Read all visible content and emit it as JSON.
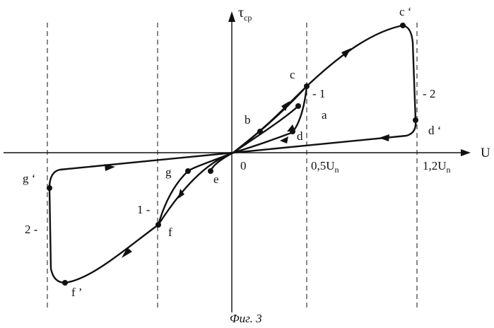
{
  "axes": {
    "y_label_main": "τ",
    "y_label_sub": "ср",
    "x_label": "U",
    "origin": "0",
    "tick_half_main": "0,5U",
    "tick_half_sub": "n",
    "tick_full_main": "1,2U",
    "tick_full_sub": "n"
  },
  "points": {
    "a": "a",
    "b": "b",
    "c": "c",
    "c_prime": "c ‘",
    "d": "d",
    "d_prime": "d ‘",
    "e": "e",
    "f": "f",
    "f_prime": "f ’",
    "g": "g",
    "g_prime": "g ‘"
  },
  "curve_labels": {
    "right_1": "- 1",
    "right_2": "- 2",
    "left_1": "1 -",
    "left_2": "2 -"
  },
  "caption": "Фиг. 3"
}
